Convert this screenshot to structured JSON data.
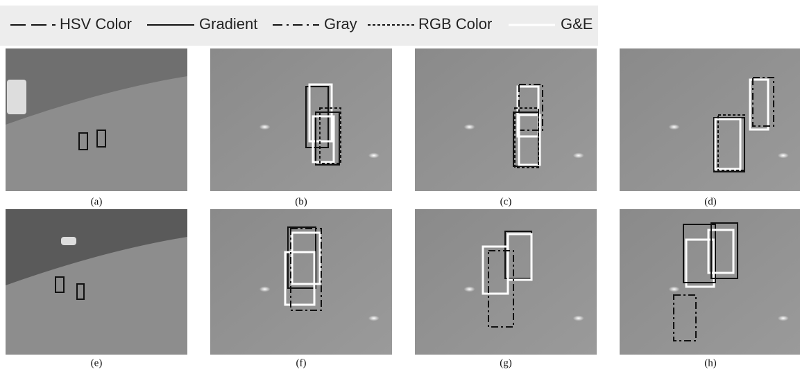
{
  "legend": {
    "items": [
      "HSV Color",
      "Gradient",
      "Gray",
      "RGB Color",
      "G&E"
    ]
  },
  "panels": [
    "(a)",
    "(b)",
    "(c)",
    "(d)",
    "(e)",
    "(f)",
    "(g)",
    "(h)"
  ]
}
